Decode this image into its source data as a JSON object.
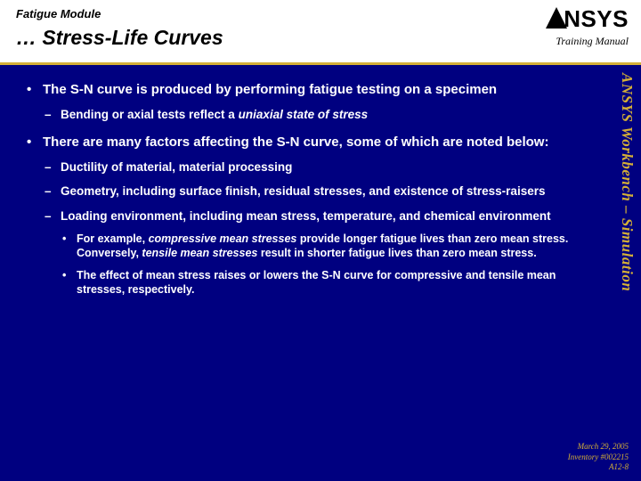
{
  "header": {
    "module": "Fatigue Module",
    "title": "… Stress-Life Curves",
    "logo_text": "NSYS",
    "training_manual": "Training Manual"
  },
  "side_label": "ANSYS Workbench – Simulation",
  "bullets": [
    {
      "text": "The S-N curve is produced by performing fatigue testing on a specimen",
      "children": [
        {
          "html": "Bending or axial tests reflect a <span class='em'>uniaxial state of stress</span>"
        }
      ]
    },
    {
      "text": "There are many factors affecting the S-N curve, some of which are noted below:",
      "children": [
        {
          "text": "Ductility of material, material processing"
        },
        {
          "text": "Geometry, including surface finish, residual stresses, and existence of stress-raisers"
        },
        {
          "text": "Loading environment, including mean stress, temperature, and chemical environment",
          "children": [
            {
              "html": "For example, <span class='em'>compressive mean stresses</span> provide longer fatigue lives than zero mean stress.  Conversely, <span class='em'>tensile mean stresses</span> result in shorter fatigue lives than zero mean stress."
            },
            {
              "text": "The effect of mean stress raises or lowers the S-N curve for compressive and tensile mean stresses, respectively."
            }
          ]
        }
      ]
    }
  ],
  "footer": {
    "date": "March 29, 2005",
    "inventory": "Inventory #002215",
    "page": "A12-8"
  },
  "colors": {
    "background": "#000080",
    "accent": "#d4af37",
    "header_bg": "#ffffff",
    "text": "#ffffff"
  }
}
